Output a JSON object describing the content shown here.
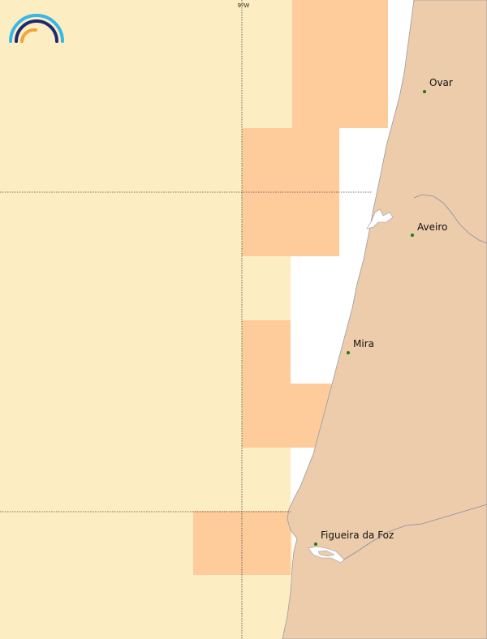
{
  "map": {
    "colors": {
      "sea_background": "#ffffff",
      "zone_light": "#fdedc2",
      "zone_orange": "#fecb9b",
      "land": "#ecccaa",
      "coastline": "#9a9aa6",
      "river": "#8c8ca8",
      "city_dot": "#1a7a1a",
      "graticule": "#444444"
    },
    "graticule": {
      "longitude_label": "9ºW"
    },
    "cities": [
      {
        "name": "Ovar"
      },
      {
        "name": "Aveiro"
      },
      {
        "name": "Mira"
      },
      {
        "name": "Figueira da Foz"
      }
    ],
    "logo": {
      "name": "rainbow-logo",
      "colors": [
        "#35b8e6",
        "#1c2a6e",
        "#f2a43a"
      ]
    }
  }
}
